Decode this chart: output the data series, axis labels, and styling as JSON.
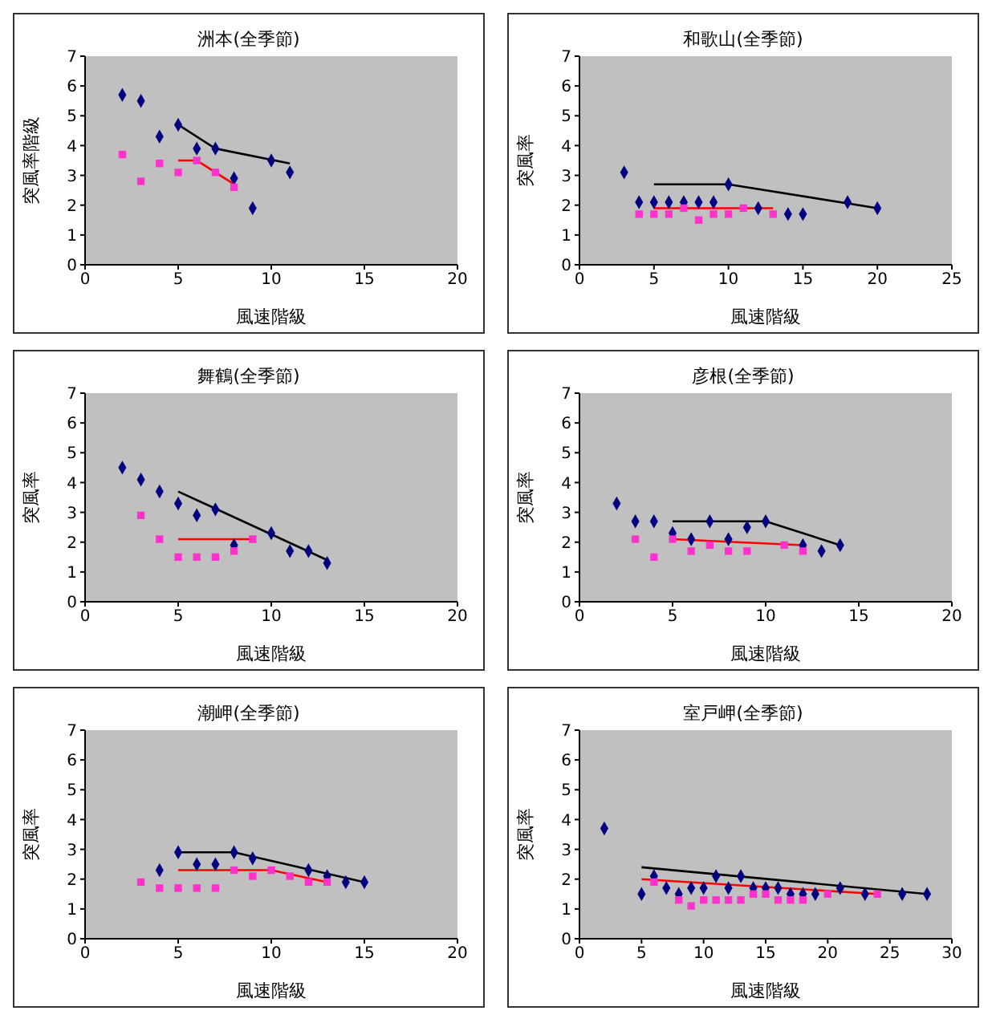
{
  "chart_data": [
    {
      "type": "scatter",
      "title": "洲本(全季節)",
      "xlabel": "風速階級",
      "ylabel": "突風率階級",
      "xlim": [
        0,
        20
      ],
      "xticks": [
        0,
        5,
        10,
        15,
        20
      ],
      "ylim": [
        0,
        7
      ],
      "yticks": [
        0,
        1,
        2,
        3,
        4,
        5,
        6,
        7
      ],
      "series": [
        {
          "type": "scatter",
          "color": "#000080",
          "marker": "diamond",
          "x": [
            2,
            3,
            4,
            5,
            6,
            7,
            8,
            9,
            10,
            11
          ],
          "values": [
            5.7,
            5.5,
            4.3,
            4.7,
            3.9,
            3.9,
            2.9,
            1.9,
            3.5,
            3.1
          ]
        },
        {
          "type": "scatter",
          "color": "#ff33cc",
          "marker": "square",
          "x": [
            2,
            3,
            4,
            5,
            6,
            7,
            8
          ],
          "values": [
            3.7,
            2.8,
            3.4,
            3.1,
            3.5,
            3.1,
            2.6
          ]
        },
        {
          "type": "line",
          "color": "#000000",
          "x": [
            5,
            7,
            11
          ],
          "values": [
            4.7,
            3.9,
            3.4
          ]
        },
        {
          "type": "line",
          "color": "#ff0000",
          "x": [
            5,
            6,
            8
          ],
          "values": [
            3.5,
            3.5,
            2.7
          ]
        }
      ]
    },
    {
      "type": "scatter",
      "title": "和歌山(全季節)",
      "xlabel": "風速階級",
      "ylabel": "突風率",
      "xlim": [
        0,
        25
      ],
      "xticks": [
        0,
        5,
        10,
        15,
        20,
        25
      ],
      "ylim": [
        0,
        7
      ],
      "yticks": [
        0,
        1,
        2,
        3,
        4,
        5,
        6,
        7
      ],
      "series": [
        {
          "type": "scatter",
          "color": "#000080",
          "marker": "diamond",
          "x": [
            3,
            4,
            5,
            6,
            7,
            8,
            9,
            10,
            12,
            14,
            15,
            18,
            20
          ],
          "values": [
            3.1,
            2.1,
            2.1,
            2.1,
            2.1,
            2.1,
            2.1,
            2.7,
            1.9,
            1.7,
            1.7,
            2.1,
            1.9
          ]
        },
        {
          "type": "scatter",
          "color": "#ff33cc",
          "marker": "square",
          "x": [
            4,
            5,
            6,
            7,
            8,
            9,
            10,
            11,
            13
          ],
          "values": [
            1.7,
            1.7,
            1.7,
            1.9,
            1.5,
            1.7,
            1.7,
            1.9,
            1.7
          ]
        },
        {
          "type": "line",
          "color": "#000000",
          "x": [
            5,
            10,
            20
          ],
          "values": [
            2.7,
            2.7,
            1.9
          ]
        },
        {
          "type": "line",
          "color": "#ff0000",
          "x": [
            5,
            13
          ],
          "values": [
            1.9,
            1.9
          ]
        }
      ]
    },
    {
      "type": "scatter",
      "title": "舞鶴(全季節)",
      "xlabel": "風速階級",
      "ylabel": "突風率",
      "xlim": [
        0,
        20
      ],
      "xticks": [
        0,
        5,
        10,
        15,
        20
      ],
      "ylim": [
        0,
        7
      ],
      "yticks": [
        0,
        1,
        2,
        3,
        4,
        5,
        6,
        7
      ],
      "series": [
        {
          "type": "scatter",
          "color": "#000080",
          "marker": "diamond",
          "x": [
            2,
            3,
            4,
            5,
            6,
            7,
            8,
            10,
            11,
            12,
            13
          ],
          "values": [
            4.5,
            4.1,
            3.7,
            3.3,
            2.9,
            3.1,
            1.9,
            2.3,
            1.7,
            1.7,
            1.3
          ]
        },
        {
          "type": "scatter",
          "color": "#ff33cc",
          "marker": "square",
          "x": [
            3,
            4,
            5,
            6,
            7,
            8,
            9
          ],
          "values": [
            2.9,
            2.1,
            1.5,
            1.5,
            1.5,
            1.7,
            2.1
          ]
        },
        {
          "type": "line",
          "color": "#000000",
          "x": [
            5,
            13
          ],
          "values": [
            3.7,
            1.4
          ]
        },
        {
          "type": "line",
          "color": "#ff0000",
          "x": [
            5,
            9
          ],
          "values": [
            2.1,
            2.1
          ]
        }
      ]
    },
    {
      "type": "scatter",
      "title": "彦根(全季節)",
      "xlabel": "風速階級",
      "ylabel": "突風率",
      "xlim": [
        0,
        20
      ],
      "xticks": [
        0,
        5,
        10,
        15,
        20
      ],
      "ylim": [
        0,
        7
      ],
      "yticks": [
        0,
        1,
        2,
        3,
        4,
        5,
        6,
        7
      ],
      "series": [
        {
          "type": "scatter",
          "color": "#000080",
          "marker": "diamond",
          "x": [
            2,
            3,
            4,
            5,
            6,
            7,
            8,
            9,
            10,
            12,
            13,
            14
          ],
          "values": [
            3.3,
            2.7,
            2.7,
            2.3,
            2.1,
            2.7,
            2.1,
            2.5,
            2.7,
            1.9,
            1.7,
            1.9
          ]
        },
        {
          "type": "scatter",
          "color": "#ff33cc",
          "marker": "square",
          "x": [
            3,
            4,
            5,
            6,
            7,
            8,
            9,
            11,
            12
          ],
          "values": [
            2.1,
            1.5,
            2.1,
            1.7,
            1.9,
            1.7,
            1.7,
            1.9,
            1.7
          ]
        },
        {
          "type": "line",
          "color": "#000000",
          "x": [
            5,
            10,
            14
          ],
          "values": [
            2.7,
            2.7,
            1.9
          ]
        },
        {
          "type": "line",
          "color": "#ff0000",
          "x": [
            5,
            12
          ],
          "values": [
            2.1,
            1.9
          ]
        }
      ]
    },
    {
      "type": "scatter",
      "title": "潮岬(全季節)",
      "xlabel": "風速階級",
      "ylabel": "突風率",
      "xlim": [
        0,
        20
      ],
      "xticks": [
        0,
        5,
        10,
        15,
        20
      ],
      "ylim": [
        0,
        7
      ],
      "yticks": [
        0,
        1,
        2,
        3,
        4,
        5,
        6,
        7
      ],
      "series": [
        {
          "type": "scatter",
          "color": "#000080",
          "marker": "diamond",
          "x": [
            4,
            5,
            6,
            7,
            8,
            9,
            12,
            13,
            14,
            15
          ],
          "values": [
            2.3,
            2.9,
            2.5,
            2.5,
            2.9,
            2.7,
            2.3,
            2.1,
            1.9,
            1.9
          ]
        },
        {
          "type": "scatter",
          "color": "#ff33cc",
          "marker": "square",
          "x": [
            3,
            4,
            5,
            6,
            7,
            8,
            9,
            10,
            11,
            12,
            13
          ],
          "values": [
            1.9,
            1.7,
            1.7,
            1.7,
            1.7,
            2.3,
            2.1,
            2.3,
            2.1,
            1.9,
            1.9
          ]
        },
        {
          "type": "line",
          "color": "#000000",
          "x": [
            5,
            8,
            15
          ],
          "values": [
            2.9,
            2.9,
            1.9
          ]
        },
        {
          "type": "line",
          "color": "#ff0000",
          "x": [
            5,
            10,
            13
          ],
          "values": [
            2.3,
            2.3,
            1.9
          ]
        }
      ]
    },
    {
      "type": "scatter",
      "title": "室戸岬(全季節)",
      "xlabel": "風速階級",
      "ylabel": "突風率",
      "xlim": [
        0,
        30
      ],
      "xticks": [
        0,
        5,
        10,
        15,
        20,
        25,
        30
      ],
      "ylim": [
        0,
        7
      ],
      "yticks": [
        0,
        1,
        2,
        3,
        4,
        5,
        6,
        7
      ],
      "series": [
        {
          "type": "scatter",
          "color": "#000080",
          "marker": "diamond",
          "x": [
            2,
            5,
            6,
            7,
            8,
            9,
            10,
            11,
            12,
            13,
            14,
            15,
            16,
            17,
            18,
            19,
            21,
            23,
            26,
            28
          ],
          "values": [
            3.7,
            1.5,
            2.1,
            1.7,
            1.5,
            1.7,
            1.7,
            2.1,
            1.7,
            2.1,
            1.7,
            1.7,
            1.7,
            1.5,
            1.5,
            1.5,
            1.7,
            1.5,
            1.5,
            1.5
          ]
        },
        {
          "type": "scatter",
          "color": "#ff33cc",
          "marker": "square",
          "x": [
            6,
            8,
            9,
            10,
            11,
            12,
            13,
            14,
            15,
            16,
            17,
            18,
            20,
            24
          ],
          "values": [
            1.9,
            1.3,
            1.1,
            1.3,
            1.3,
            1.3,
            1.3,
            1.5,
            1.5,
            1.3,
            1.3,
            1.3,
            1.5,
            1.5
          ]
        },
        {
          "type": "line",
          "color": "#000000",
          "x": [
            5,
            28
          ],
          "values": [
            2.4,
            1.5
          ]
        },
        {
          "type": "line",
          "color": "#ff0000",
          "x": [
            5,
            24
          ],
          "values": [
            2.0,
            1.5
          ]
        }
      ]
    }
  ]
}
